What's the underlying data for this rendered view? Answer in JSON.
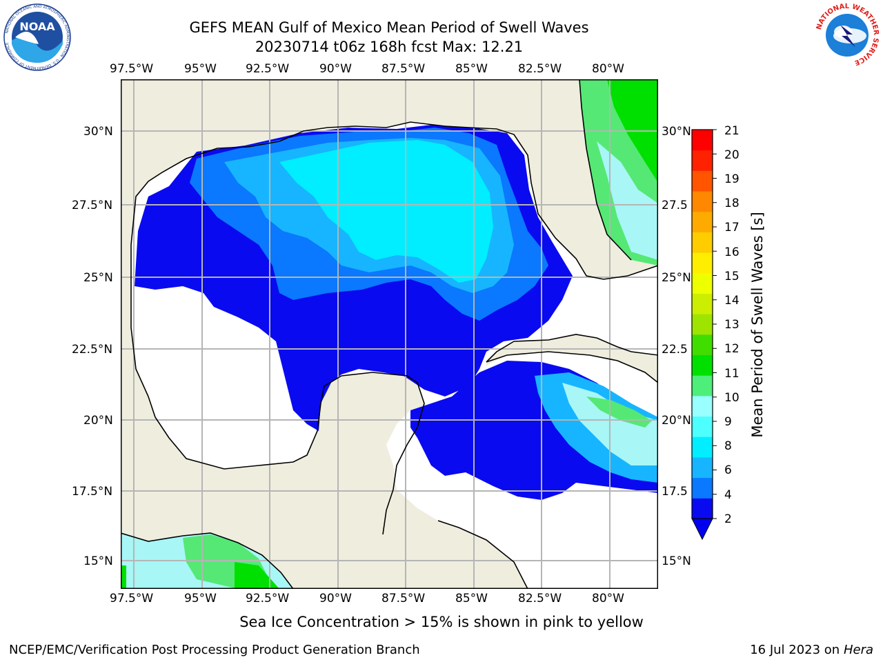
{
  "title": {
    "line1": "GEFS MEAN Gulf of Mexico Mean Period of Swell Waves",
    "line2": "20230714 t06z 168h fcst   Max: 12.21"
  },
  "logos": {
    "noaa": {
      "text": "NOAA",
      "ring_text": "NATIONAL OCEANIC AND ATMOSPHERIC ADMINISTRATION · U.S. DEPARTMENT OF COMMERCE"
    },
    "nws": {
      "ring_text": "NATIONAL WEATHER SERVICE"
    }
  },
  "map": {
    "lon_labels_top": [
      "97.5°W",
      "95°W",
      "92.5°W",
      "90°W",
      "87.5°W",
      "85°W",
      "82.5°W",
      "80°W"
    ],
    "lon_labels_bottom": [
      "97.5°W",
      "95°W",
      "92.5°W",
      "90°W",
      "87.5°W",
      "85°W",
      "82.5°W",
      "80°W"
    ],
    "lat_labels_left": [
      "30°N",
      "27.5°N",
      "25°N",
      "22.5°N",
      "20°N",
      "17.5°N",
      "15°N"
    ],
    "lat_labels_right": [
      "30°N",
      "27.5",
      "25°N",
      "22.5",
      "20°N",
      "17.5",
      "15°N"
    ],
    "lon_range": [
      -98,
      -78.3
    ],
    "lat_range": [
      14,
      31.8
    ],
    "gridlines": true,
    "land_color": "#efedde",
    "ocean_nodata_color": "#ffffff"
  },
  "colorbar": {
    "label": "Mean Period of Swell Waves [s]",
    "ticks": [
      "21",
      "20",
      "19",
      "18",
      "17",
      "16",
      "15",
      "14",
      "13",
      "12",
      "11",
      "10",
      "9",
      "8",
      "6",
      "4",
      "2"
    ],
    "levels": [
      2,
      4,
      6,
      8,
      9,
      10,
      11,
      12,
      13,
      14,
      15,
      16,
      17,
      18,
      19,
      20,
      21
    ],
    "colors": [
      "#0a0af0",
      "#0a78ff",
      "#17b5ff",
      "#00eeff",
      "#4dffff",
      "#99ffff",
      "#4dee7a",
      "#00e000",
      "#40dd00",
      "#9ee400",
      "#ccee00",
      "#eeff00",
      "#ffee00",
      "#ffcc00",
      "#ffaa00",
      "#ff8800",
      "#ff5500",
      "#ff2200",
      "#ff0000"
    ],
    "under_color": "#0000ee"
  },
  "note": "Sea Ice Concentration > 15% is shown in pink to yellow",
  "footer": {
    "left": "NCEP/EMC/Verification Post Processing Product Generation Branch",
    "date": "16 Jul 2023 on ",
    "host": "Hera"
  }
}
